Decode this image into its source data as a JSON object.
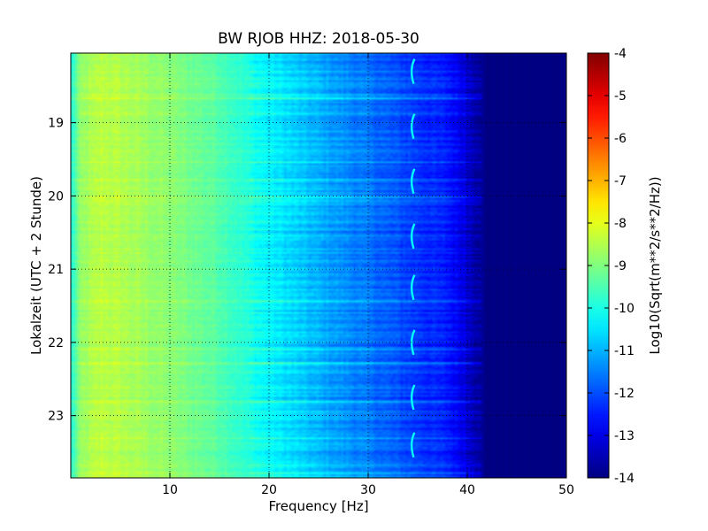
{
  "chart_data": {
    "type": "heatmap",
    "title": "BW RJOB HHZ: 2018-05-30",
    "xlabel": "Frequency [Hz]",
    "ylabel": "Lokalzeit (UTC + 2 Stunde)",
    "xlim": [
      0,
      50
    ],
    "ylim": [
      18.05,
      23.85
    ],
    "x_ticks": [
      "10",
      "20",
      "30",
      "40",
      "50"
    ],
    "y_ticks": [
      "19",
      "20",
      "21",
      "22",
      "23"
    ],
    "x_tick_values": [
      10,
      20,
      30,
      40,
      50
    ],
    "y_tick_values": [
      19,
      20,
      21,
      22,
      23
    ],
    "grid": true,
    "colormap": "jet",
    "colorbar": {
      "label": "Log10(Sqrt(m**2/s**2/Hz))",
      "min": -14,
      "max": -4,
      "ticks": [
        "-4",
        "-5",
        "-6",
        "-7",
        "-8",
        "-9",
        "-10",
        "-11",
        "-12",
        "-13",
        "-14"
      ],
      "tick_values": [
        -4,
        -5,
        -6,
        -7,
        -8,
        -9,
        -10,
        -11,
        -12,
        -13,
        -14
      ]
    },
    "spectral_profile": {
      "frequency_hz": [
        0,
        1,
        3,
        5,
        10,
        15,
        20,
        25,
        30,
        35,
        38,
        40,
        41,
        42,
        50
      ],
      "log10_amplitude": [
        -10.0,
        -8.8,
        -8.4,
        -8.5,
        -8.9,
        -9.4,
        -10.3,
        -11.0,
        -11.6,
        -12.2,
        -12.5,
        -13.1,
        -13.6,
        -14.0,
        -14.0
      ]
    },
    "features": {
      "tonal_line_hz": 34.5,
      "tonal_bursts_hours": [
        18.3,
        19.05,
        19.8,
        20.55,
        21.25,
        22.0,
        22.75,
        23.4
      ],
      "hf_cutoff_hz": 41.5
    }
  }
}
